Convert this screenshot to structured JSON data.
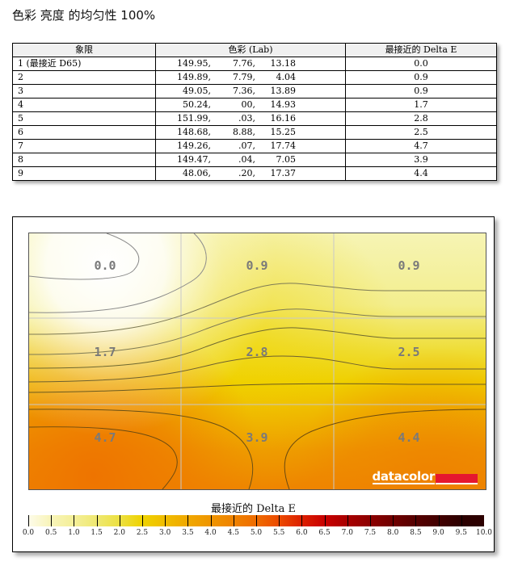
{
  "title": "色彩 亮度 的均匀性 100%",
  "table": {
    "headers": [
      "象限",
      "色彩 (Lab)",
      "最接近的 Delta E"
    ],
    "rows": [
      {
        "quadrant": "1 (最接近 D65)",
        "L": "149.95,",
        "a": "7.76,",
        "b": "13.18",
        "delta_e": "0.0"
      },
      {
        "quadrant": "2",
        "L": "149.89,",
        "a": "7.79,",
        "b": "4.04",
        "delta_e": "0.9"
      },
      {
        "quadrant": "3",
        "L": "49.05,",
        "a": "7.36,",
        "b": "13.89",
        "delta_e": "0.9"
      },
      {
        "quadrant": "4",
        "L": "50.24,",
        "a": "00,",
        "b": "14.93",
        "delta_e": "1.7"
      },
      {
        "quadrant": "5",
        "L": "151.99,",
        "a": ".03,",
        "b": "16.16",
        "delta_e": "2.8"
      },
      {
        "quadrant": "6",
        "L": "148.68,",
        "a": "8.88,",
        "b": "15.25",
        "delta_e": "2.5"
      },
      {
        "quadrant": "7",
        "L": "149.26,",
        "a": ".07,",
        "b": "17.74",
        "delta_e": "4.7"
      },
      {
        "quadrant": "8",
        "L": "149.47,",
        "a": ".04,",
        "b": "7.05",
        "delta_e": "3.9"
      },
      {
        "quadrant": "9",
        "L": "48.06,",
        "a": ".20,",
        "b": "17.37",
        "delta_e": "4.4"
      }
    ]
  },
  "chart": {
    "cell_labels": [
      "0.0",
      "0.9",
      "0.9",
      "1.7",
      "2.8",
      "2.5",
      "4.7",
      "3.9",
      "4.4"
    ],
    "logo_text": "datacolor",
    "legend_title": "最接近的 Delta E",
    "legend_ticks": [
      "0.0",
      "0.5",
      "1.0",
      "1.5",
      "2.0",
      "2.5",
      "3.0",
      "3.5",
      "4.0",
      "4.5",
      "5.0",
      "5.5",
      "6.0",
      "6.5",
      "7.0",
      "7.5",
      "8.0",
      "8.5",
      "9.0",
      "9.5",
      "10.0"
    ],
    "legend_colors": [
      "#fdfbe8",
      "#f8f4b8",
      "#f4ef98",
      "#efe870",
      "#ece040",
      "#efd200",
      "#f0bd00",
      "#f0a800",
      "#ef9500",
      "#ef8200",
      "#ef6c00",
      "#ec4a00",
      "#dc2000",
      "#c80000",
      "#a80000",
      "#8c0000",
      "#700000",
      "#560000",
      "#420000",
      "#2c0000"
    ],
    "accent_logo_red": "#e5172f"
  },
  "chart_data": {
    "type": "heatmap",
    "title": "色彩 亮度 的均匀性 100%",
    "grid": {
      "rows": 3,
      "cols": 3
    },
    "values": [
      [
        0.0,
        0.9,
        0.9
      ],
      [
        1.7,
        2.8,
        2.5
      ],
      [
        4.7,
        3.9,
        4.4
      ]
    ],
    "colorbar": {
      "label": "最接近的 Delta E",
      "range": [
        0.0,
        10.0
      ],
      "step": 0.5
    },
    "contours": true,
    "grid_lines": true
  }
}
